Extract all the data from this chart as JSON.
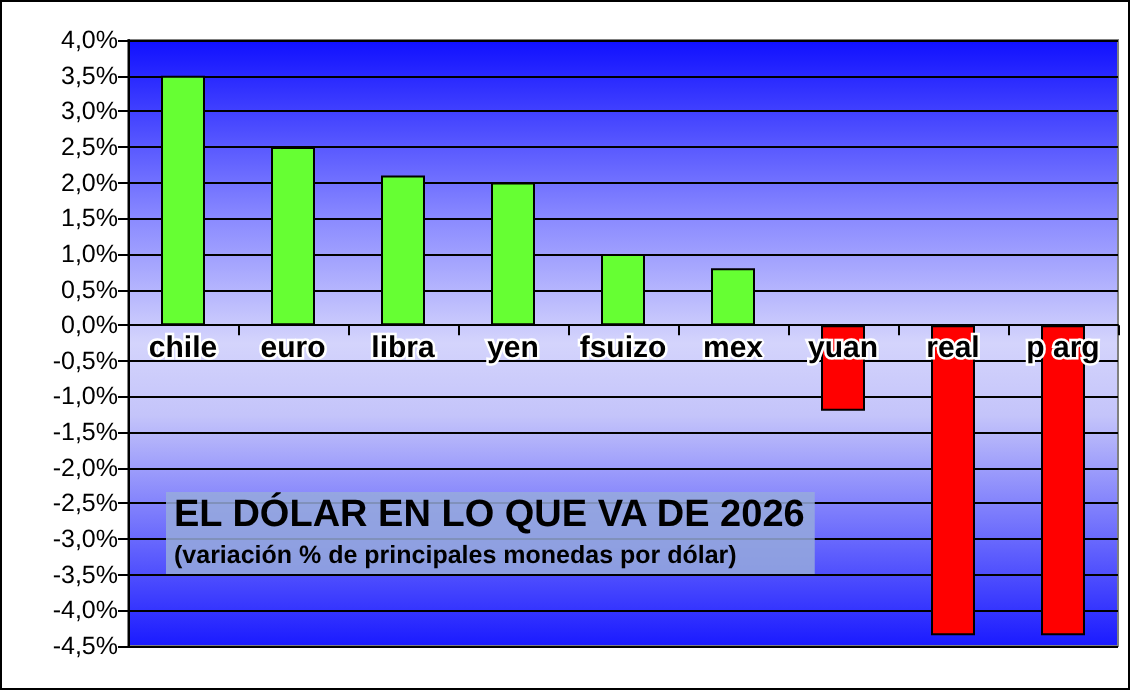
{
  "chart_data": {
    "type": "bar",
    "title": "EL DÓLAR EN LO QUE VA DE 2026",
    "subtitle": "(variación % de principales monedas por dólar)",
    "categories": [
      "chile",
      "euro",
      "libra",
      "yen",
      "fsuizo",
      "mex",
      "yuan",
      "real",
      "p arg"
    ],
    "values": [
      3.5,
      2.5,
      2.1,
      2.0,
      1.0,
      0.8,
      -1.2,
      -4.35,
      -4.35
    ],
    "colors": [
      "#66ff33",
      "#66ff33",
      "#66ff33",
      "#66ff33",
      "#66ff33",
      "#66ff33",
      "#ff0000",
      "#ff0000",
      "#ff0000"
    ],
    "ylim": [
      -4.5,
      4.0
    ],
    "yticks": [
      {
        "value": -4.5,
        "label": "-4,5%"
      },
      {
        "value": -4.0,
        "label": "-4,0%"
      },
      {
        "value": -3.5,
        "label": "-3,5%"
      },
      {
        "value": -3.0,
        "label": "-3,0%"
      },
      {
        "value": -2.5,
        "label": "-2,5%"
      },
      {
        "value": -2.0,
        "label": "-2,0%"
      },
      {
        "value": -1.5,
        "label": "-1,5%"
      },
      {
        "value": -1.0,
        "label": "-1,0%"
      },
      {
        "value": -0.5,
        "label": "-0,5%"
      },
      {
        "value": 0,
        "label": "0,0%"
      },
      {
        "value": 0.5,
        "label": "0,5%"
      },
      {
        "value": 1.0,
        "label": "1,0%"
      },
      {
        "value": 1.5,
        "label": "1,5%"
      },
      {
        "value": 2.0,
        "label": "2,0%"
      },
      {
        "value": 2.5,
        "label": "2,5%"
      },
      {
        "value": 3.0,
        "label": "3,0%"
      },
      {
        "value": 3.5,
        "label": "3,5%"
      },
      {
        "value": 4.0,
        "label": "4,0%"
      }
    ],
    "grid": "y"
  }
}
